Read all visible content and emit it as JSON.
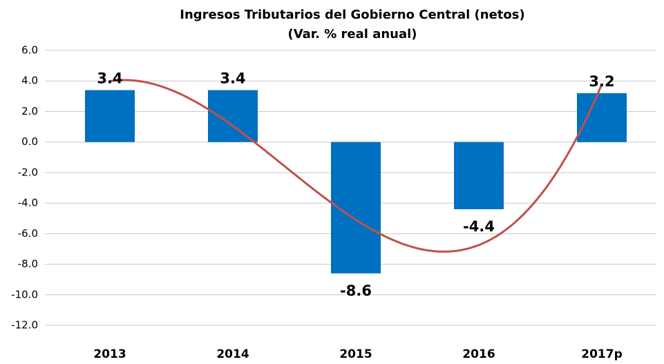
{
  "chart_data": {
    "type": "bar",
    "title": "Ingresos Tributarios del Gobierno Central (netos)",
    "subtitle": "(Var. % real anual)",
    "categories": [
      "2013",
      "2014",
      "2015",
      "2016",
      "2017p"
    ],
    "values": [
      3.4,
      3.4,
      -8.6,
      -4.4,
      3.2
    ],
    "color": "#0070c0",
    "label_color": "#4f81bd",
    "ylim": [
      -12,
      6
    ],
    "yticks": [
      {
        "value": -12,
        "label": "-12.0"
      },
      {
        "value": -10,
        "label": "-10.0"
      },
      {
        "value": -8,
        "label": "-8.0"
      },
      {
        "value": -6,
        "label": "-6.0"
      },
      {
        "value": -4,
        "label": "-4.0"
      },
      {
        "value": -2,
        "label": "-2.0"
      },
      {
        "value": 0,
        "label": "0.0"
      },
      {
        "value": 2,
        "label": "2.0"
      },
      {
        "value": 4,
        "label": "4.0"
      },
      {
        "value": 6,
        "label": "6.0"
      }
    ],
    "grid": true,
    "trendline": {
      "type": "polynomial",
      "order": 3,
      "color": "#c0504d"
    }
  }
}
